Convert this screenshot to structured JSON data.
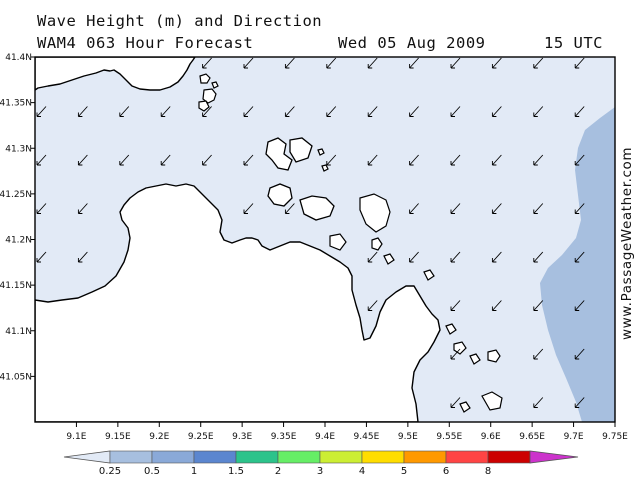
{
  "header": {
    "title": "Wave Height (m) and Direction",
    "subtitle": "WAM4 063 Hour Forecast",
    "date": "Wed 05 Aug 2009",
    "time": "15 UTC"
  },
  "credit": "www.PassageWeather.com",
  "colors": {
    "land": "#ffffff",
    "sea_lt_0_25": "#e2eaf6",
    "sea_0_25_0_5": "#a7bfdf",
    "coastline": "#000000",
    "arrow": "#000000"
  },
  "chart_data": {
    "type": "map",
    "variable": "Wave Height (m) and Direction",
    "x_axis": {
      "range": [
        9.05,
        9.75
      ],
      "tick_labels": [
        "9.1E",
        "9.15E",
        "9.2E",
        "9.25E",
        "9.3E",
        "9.35E",
        "9.4E",
        "9.45E",
        "9.5E",
        "9.55E",
        "9.6E",
        "9.65E",
        "9.7E",
        "9.75E"
      ],
      "tick_values": [
        9.1,
        9.15,
        9.2,
        9.25,
        9.3,
        9.35,
        9.4,
        9.45,
        9.5,
        9.55,
        9.6,
        9.65,
        9.7,
        9.75
      ]
    },
    "y_axis": {
      "range": [
        41.0,
        41.4
      ],
      "tick_labels": [
        "41.4N",
        "41.35N",
        "41.3N",
        "41.25N",
        "41.2N",
        "41.15N",
        "41.1N",
        "41.05N"
      ],
      "tick_values": [
        41.4,
        41.35,
        41.3,
        41.25,
        41.2,
        41.15,
        41.1,
        41.05
      ]
    },
    "grid": false,
    "legend": {
      "placement": "bottom",
      "unit": "m",
      "labels": [
        "0.25",
        "0.5",
        "1",
        "1.5",
        "2",
        "3",
        "4",
        "5",
        "6",
        "8"
      ],
      "colors": [
        "#e2eaf6",
        "#a7bfdf",
        "#8aa9d8",
        "#5b86cf",
        "#2cc38b",
        "#66ee66",
        "#ccee33",
        "#ffdd00",
        "#ff9900",
        "#ff4444",
        "#cc0000",
        "#cc33cc"
      ]
    },
    "wave_direction": "from NE (arrows pointing SW)",
    "wave_height_zones": [
      {
        "range": "<0.25 m",
        "area": "most of the sea area"
      },
      {
        "range": "0.25-0.5 m",
        "area": "eastern edge, east of ~9.67E"
      }
    ]
  }
}
